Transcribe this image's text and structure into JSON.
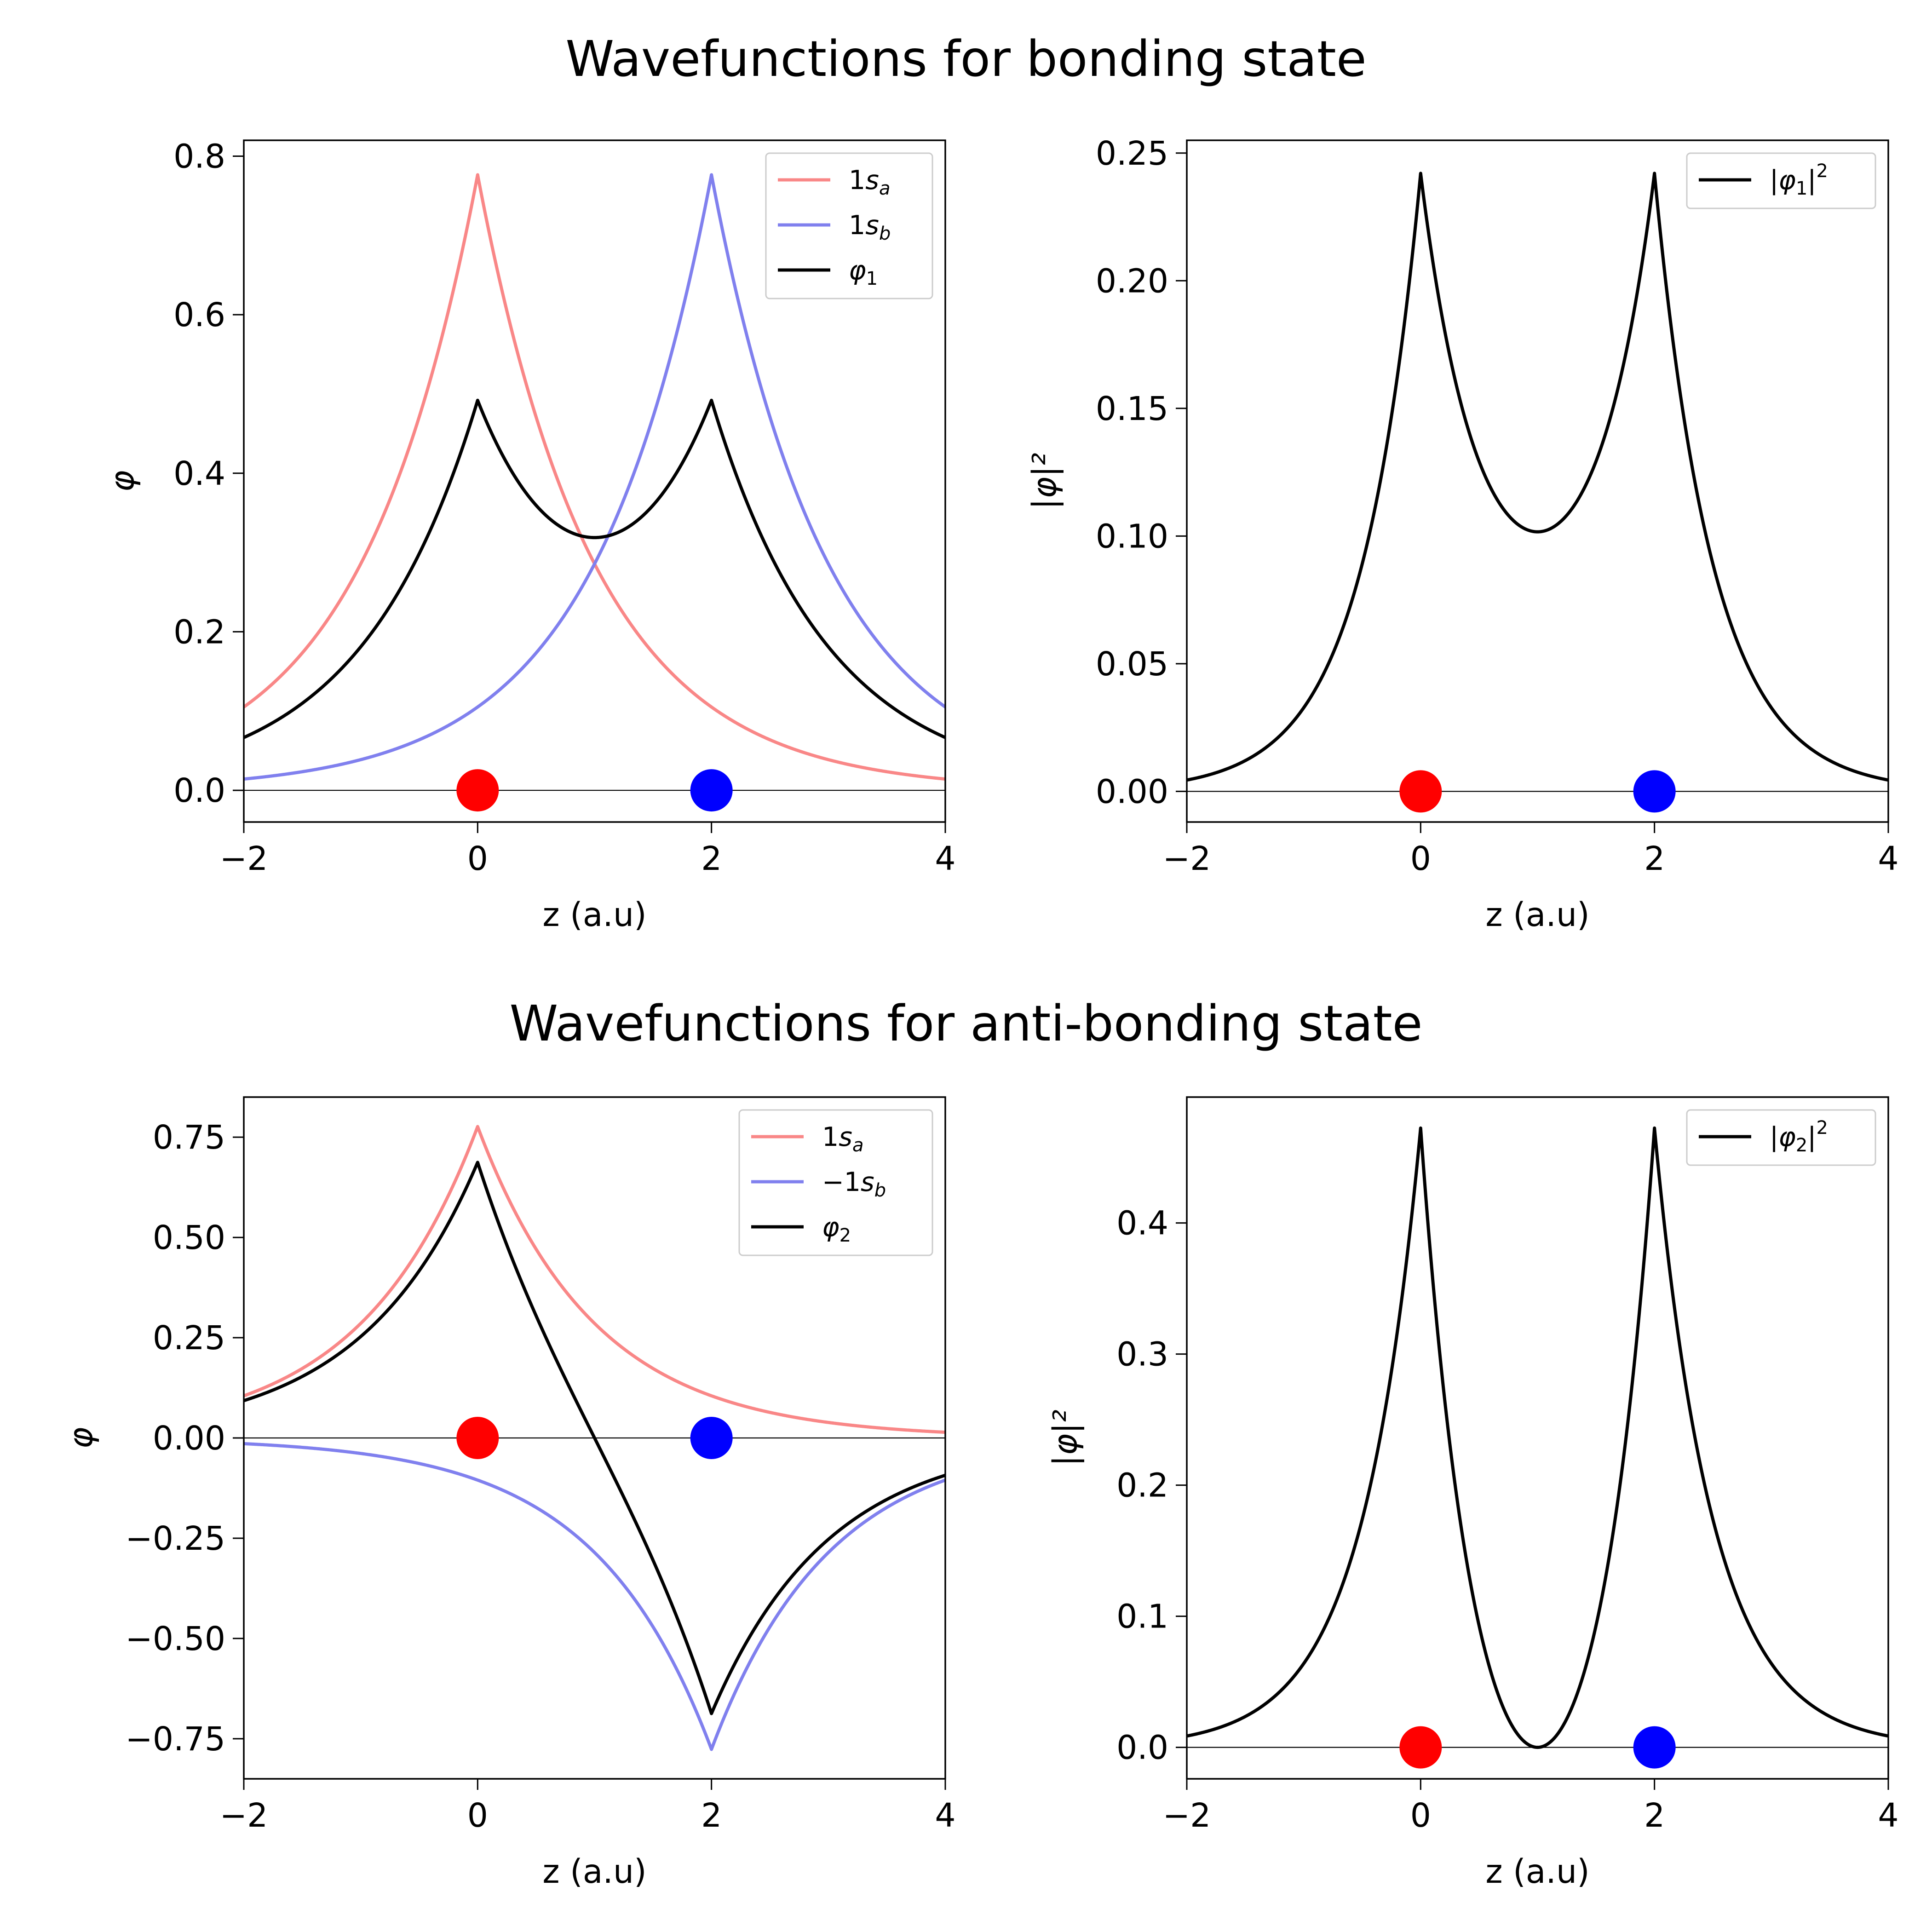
{
  "figure": {
    "row_titles": [
      "Wavefunctions for bonding state",
      "Wavefunctions for anti-bonding state"
    ]
  },
  "colors": {
    "series_a": "#f98787",
    "series_b": "#8080ee",
    "total": "#000000",
    "nucleus_a": "#ff0000",
    "nucleus_b": "#0000ff"
  },
  "chart_data": [
    {
      "type": "line",
      "id": "bonding-wavefunction",
      "xlabel": "z (a.u)",
      "ylabel": "φ",
      "xlim": [
        -2,
        4
      ],
      "ylim": [
        -0.04,
        0.82
      ],
      "xticks": [
        "−2",
        "0",
        "2",
        "4"
      ],
      "yticks": [
        "0.0",
        "0.2",
        "0.4",
        "0.6",
        "0.8"
      ],
      "legend_position": "upper-right",
      "nuclei": [
        {
          "z": 0,
          "color": "red"
        },
        {
          "z": 2,
          "color": "blue"
        }
      ],
      "series": [
        {
          "name": "1s_a",
          "legend": "1s",
          "sub": "a",
          "prefix": "",
          "color": "#f98787",
          "z": [
            -2,
            -1,
            0,
            1,
            2,
            3,
            4
          ],
          "values": [
            0.066,
            0.207,
            0.776,
            0.207,
            0.066,
            0.02,
            0.005
          ]
        },
        {
          "name": "1s_b",
          "legend": "1s",
          "sub": "b",
          "prefix": "",
          "color": "#8080ee",
          "z": [
            -2,
            -1,
            0,
            1,
            2,
            3,
            4
          ],
          "values": [
            0.005,
            0.02,
            0.066,
            0.207,
            0.776,
            0.207,
            0.066
          ]
        },
        {
          "name": "φ1",
          "legend": "φ",
          "sub": "1",
          "prefix": "",
          "color": "#000000",
          "z": [
            -2,
            -1,
            0,
            1,
            2,
            3,
            4
          ],
          "values": [
            0.041,
            0.134,
            0.492,
            0.264,
            0.492,
            0.134,
            0.041
          ]
        }
      ]
    },
    {
      "type": "line",
      "id": "bonding-density",
      "xlabel": "z (a.u)",
      "ylabel": "|φ|²",
      "xlim": [
        -2,
        4
      ],
      "ylim": [
        -0.012,
        0.255
      ],
      "xticks": [
        "−2",
        "0",
        "2",
        "4"
      ],
      "yticks": [
        "0.00",
        "0.05",
        "0.10",
        "0.15",
        "0.20",
        "0.25"
      ],
      "legend_position": "upper-right",
      "nuclei": [
        {
          "z": 0,
          "color": "red"
        },
        {
          "z": 2,
          "color": "blue"
        }
      ],
      "series": [
        {
          "name": "|φ1|²",
          "legend": "|φ",
          "sub": "1",
          "prefix": "",
          "color": "#000000",
          "z": [
            -2,
            -1,
            0,
            1,
            2,
            3,
            4
          ],
          "values": [
            0.0017,
            0.018,
            0.242,
            0.069,
            0.242,
            0.018,
            0.0017
          ]
        }
      ]
    },
    {
      "type": "line",
      "id": "antibonding-wavefunction",
      "xlabel": "z (a.u)",
      "ylabel": "φ",
      "xlim": [
        -2,
        4
      ],
      "ylim": [
        -0.85,
        0.85
      ],
      "xticks": [
        "−2",
        "0",
        "2",
        "4"
      ],
      "yticks": [
        "−0.75",
        "−0.50",
        "−0.25",
        "0.00",
        "0.25",
        "0.50",
        "0.75"
      ],
      "legend_position": "upper-right",
      "nuclei": [
        {
          "z": 0,
          "color": "red"
        },
        {
          "z": 2,
          "color": "blue"
        }
      ],
      "series": [
        {
          "name": "1s_a",
          "legend": "1s",
          "sub": "a",
          "prefix": "",
          "color": "#f98787",
          "z": [
            -2,
            -1,
            0,
            1,
            2,
            3,
            4
          ],
          "values": [
            0.066,
            0.207,
            0.776,
            0.207,
            0.066,
            0.02,
            0.005
          ]
        },
        {
          "name": "−1s_b",
          "legend": "1s",
          "sub": "b",
          "prefix": "−",
          "color": "#8080ee",
          "z": [
            -2,
            -1,
            0,
            1,
            2,
            3,
            4
          ],
          "values": [
            -0.005,
            -0.02,
            -0.066,
            -0.207,
            -0.776,
            -0.207,
            -0.066
          ]
        },
        {
          "name": "φ2",
          "legend": "φ",
          "sub": "2",
          "prefix": "",
          "color": "#000000",
          "z": [
            -2,
            -1,
            0,
            1,
            2,
            3,
            4
          ],
          "values": [
            0.06,
            0.187,
            0.687,
            0.0,
            -0.687,
            -0.187,
            -0.06
          ]
        }
      ]
    },
    {
      "type": "line",
      "id": "antibonding-density",
      "xlabel": "z (a.u)",
      "ylabel": "|φ|²",
      "xlim": [
        -2,
        4
      ],
      "ylim": [
        -0.024,
        0.496
      ],
      "xticks": [
        "−2",
        "0",
        "2",
        "4"
      ],
      "yticks": [
        "0.0",
        "0.1",
        "0.2",
        "0.3",
        "0.4"
      ],
      "legend_position": "upper-right",
      "nuclei": [
        {
          "z": 0,
          "color": "red"
        },
        {
          "z": 2,
          "color": "blue"
        }
      ],
      "series": [
        {
          "name": "|φ2|²",
          "legend": "|φ",
          "sub": "2",
          "prefix": "",
          "color": "#000000",
          "z": [
            -2,
            -1,
            0,
            1,
            2,
            3,
            4
          ],
          "values": [
            0.0036,
            0.035,
            0.472,
            0.0,
            0.472,
            0.035,
            0.0036
          ]
        }
      ]
    }
  ]
}
